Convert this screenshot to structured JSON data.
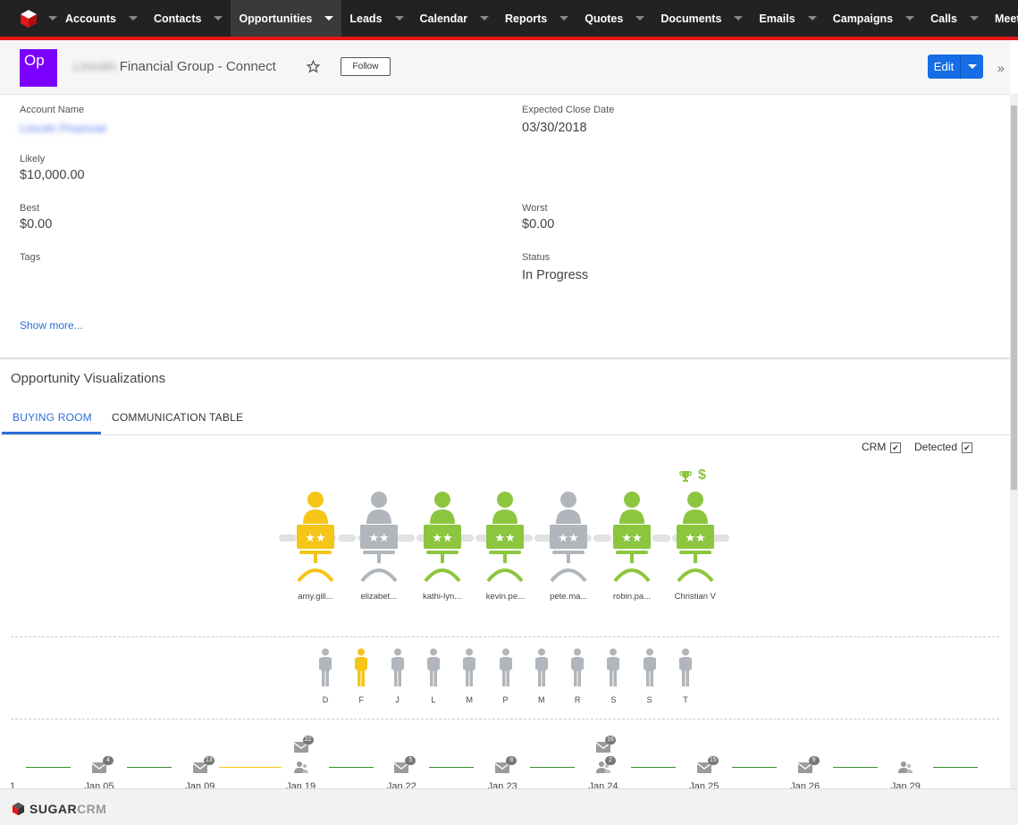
{
  "nav": {
    "items": [
      {
        "label": "Accounts"
      },
      {
        "label": "Contacts"
      },
      {
        "label": "Opportunities",
        "active": true
      },
      {
        "label": "Leads"
      },
      {
        "label": "Calendar"
      },
      {
        "label": "Reports"
      },
      {
        "label": "Quotes"
      },
      {
        "label": "Documents"
      },
      {
        "label": "Emails"
      },
      {
        "label": "Campaigns"
      },
      {
        "label": "Calls"
      },
      {
        "label": "Meetings"
      }
    ]
  },
  "record": {
    "module_badge": "Op",
    "title_blurred": "Lincoln",
    "title": "Financial Group - Connect",
    "follow_label": "Follow",
    "edit_label": "Edit"
  },
  "fields": {
    "account_name_label": "Account Name",
    "account_name_value": "Lincoln Financial",
    "expected_close_label": "Expected Close Date",
    "expected_close_value": "03/30/2018",
    "likely_label": "Likely",
    "likely_value": "$10,000.00",
    "best_label": "Best",
    "best_value": "$0.00",
    "worst_label": "Worst",
    "worst_value": "$0.00",
    "tags_label": "Tags",
    "status_label": "Status",
    "status_value": "In Progress",
    "show_more": "Show more..."
  },
  "viz": {
    "title": "Opportunity Visualizations",
    "tabs": [
      {
        "label": "BUYING ROOM",
        "active": true
      },
      {
        "label": "COMMUNICATION TABLE"
      }
    ],
    "filters": {
      "crm_label": "CRM",
      "crm_checked": true,
      "detected_label": "Detected",
      "detected_checked": true
    },
    "buying_room": [
      {
        "name": "amy.gill...",
        "color": "#f5c518"
      },
      {
        "name": "elizabet...",
        "color": "#b0b6bb"
      },
      {
        "name": "kathi-lyn...",
        "color": "#8cc63f"
      },
      {
        "name": "kevin.pe...",
        "color": "#8cc63f"
      },
      {
        "name": "pete.ma...",
        "color": "#b0b6bb"
      },
      {
        "name": "robin.pa...",
        "color": "#8cc63f"
      },
      {
        "name": "Christian V",
        "color": "#8cc63f",
        "icons": [
          "trophy-icon",
          "dollar-icon"
        ]
      }
    ],
    "contacts_row": [
      {
        "letter": "D",
        "color": "#b0b6bb"
      },
      {
        "letter": "F",
        "color": "#f5c518"
      },
      {
        "letter": "J",
        "color": "#b0b6bb"
      },
      {
        "letter": "L",
        "color": "#b0b6bb"
      },
      {
        "letter": "M",
        "color": "#b0b6bb"
      },
      {
        "letter": "P",
        "color": "#b0b6bb"
      },
      {
        "letter": "M",
        "color": "#b0b6bb"
      },
      {
        "letter": "R",
        "color": "#b0b6bb"
      },
      {
        "letter": "S",
        "color": "#b0b6bb"
      },
      {
        "letter": "S",
        "color": "#b0b6bb"
      },
      {
        "letter": "T",
        "color": "#b0b6bb"
      }
    ],
    "timeline": [
      {
        "date": "Jan 05",
        "email_count": "4"
      },
      {
        "date": "Jan 09",
        "email_count": "13"
      },
      {
        "date": "Jan 19",
        "email_count": "22",
        "meeting": true
      },
      {
        "date": "Jan 22",
        "email_count": "5"
      },
      {
        "date": "Jan 23",
        "email_count": "8"
      },
      {
        "date": "Jan 24",
        "email_count": "16",
        "meeting_count": "2"
      },
      {
        "date": "Jan 25",
        "email_count": "15"
      },
      {
        "date": "Jan 26",
        "email_count": "9"
      },
      {
        "date": "Jan 29",
        "meeting": true
      }
    ],
    "timeline_start_label": "1"
  },
  "footer": {
    "brand_a": "SUGAR",
    "brand_b": "CRM"
  }
}
